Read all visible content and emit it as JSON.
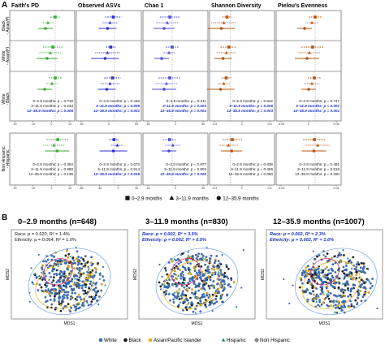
{
  "figure": {
    "panelA_letter": "A",
    "panelB_letter": "B",
    "marker_legend": {
      "items": [
        {
          "symbol": "square",
          "label": "0–2.9 months"
        },
        {
          "symbol": "triangle",
          "label": "3–11.9 months"
        },
        {
          "symbol": "circle",
          "label": "12–35.9 months"
        }
      ]
    },
    "group_legend": {
      "items": [
        {
          "label": "White",
          "color": "#3a6fc4",
          "shape": "dot"
        },
        {
          "label": "Black",
          "color": "#1a1a1a",
          "shape": "dot"
        },
        {
          "label": "Asian/Pacific Islander",
          "color": "#e0b020",
          "shape": "dot"
        },
        {
          "label": "Hispanic",
          "color": "#2a8a8a",
          "shape": "triangle"
        },
        {
          "label": "Non Hispanic",
          "color": "#888888",
          "shape": "dot"
        }
      ]
    }
  },
  "chart_data": [
    {
      "type": "forest",
      "panel": "A",
      "columns": [
        "Faith's PD",
        "Observed ASVs",
        "Chao 1",
        "Shannon Diversity",
        "Pielou's Evenness"
      ],
      "column_colors": [
        "#3aaa35",
        "#2f2fd0",
        "#4a4ad8",
        "#b5540f",
        "#b5540f"
      ],
      "rows": [
        "Black - Asian/PI",
        "White - Asian/PI",
        "White - Black",
        "Non Hispanic - Hispanic"
      ],
      "x_ticks": [
        [
          "-20",
          "-10",
          "0",
          "10"
        ],
        [
          "-50",
          "0",
          "50"
        ],
        [
          "-50",
          "0",
          "50"
        ],
        [
          "-0.5",
          "0",
          "0.5"
        ],
        [
          "-0.05",
          "0",
          "0.05"
        ]
      ],
      "x_ticks_row4": [
        [
          "-20",
          "-10",
          "0",
          "10"
        ],
        [
          "-80",
          "-40",
          "0",
          "40"
        ],
        [
          "-40",
          "0",
          "40"
        ],
        [
          "-0.4",
          "0",
          "0.4"
        ],
        [
          "-0.04",
          "0",
          "0.04"
        ]
      ],
      "p_values_race": {
        "labels": [
          "0–2.9 months",
          "3–11.9 months",
          "12–35.9 months"
        ],
        "values": [
          [
            "0.718",
            "0.233",
            "0.006"
          ],
          [
            "0.448",
            "0.005",
            "0.001"
          ],
          [
            "0.311",
            "0.003",
            "0.001"
          ],
          [
            "0.642",
            "0.006",
            "0.003"
          ],
          [
            "0.747",
            "0.001",
            "0.001"
          ]
        ]
      },
      "p_values_ethnicity": {
        "labels": [
          "0–2.9 months",
          "3–11.9 months",
          "12–35.9 months"
        ],
        "values": [
          [
            "0.384",
            "0.880",
            "0.139"
          ],
          [
            "0.673",
            "0.914",
            "0.025"
          ],
          [
            "0.977",
            "0.803",
            "0.020"
          ],
          [
            "0.839",
            "0.406",
            "0.050"
          ],
          [
            "0.491",
            "0.815",
            "0.200"
          ]
        ]
      }
    },
    {
      "type": "scatter",
      "panel": "B",
      "panels": [
        {
          "title": "0–2.9 months (n=648)",
          "stat1": "Race: p = 0.620, R² = 1.4%",
          "stat2": "Ethnicity: p = 0.064, R² = 1.0%",
          "stats_bold": false,
          "xlabel": "MDS1",
          "ylabel": "MDS2"
        },
        {
          "title": "3–11.9 months (n=830)",
          "stat1": "Race: p = 0.002, R² = 3.5%",
          "stat2": "Ethnicity: p = 0.002, R² = 0.5%",
          "stats_bold": true,
          "xlabel": "MDS1",
          "ylabel": "MDS2"
        },
        {
          "title": "12–35.9 months (n=1007)",
          "stat1": "Race: p = 0.002, R² = 2.3%",
          "stat2": "Ethnicity: p = 0.002, R² = 1.6%",
          "stats_bold": true,
          "xlabel": "MDS1",
          "ylabel": "MDS2"
        }
      ]
    }
  ]
}
